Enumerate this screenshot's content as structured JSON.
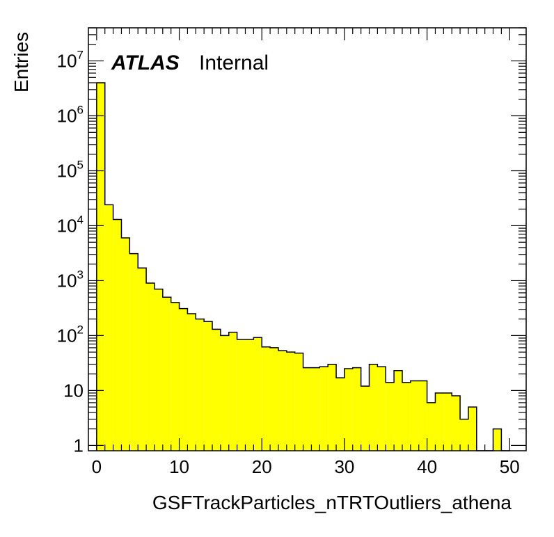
{
  "chart_data": {
    "type": "histogram",
    "xlabel": "GSFTrackParticles_nTRTOutliers_athena",
    "ylabel": "Entries",
    "xlim": [
      -1,
      52
    ],
    "ylim": [
      0.8,
      40000000
    ],
    "y_scale": "log",
    "bin_edges_start": 0,
    "bin_width": 1,
    "values": [
      4000000,
      24000,
      13000,
      6000,
      3100,
      1700,
      900,
      700,
      500,
      400,
      310,
      250,
      200,
      180,
      130,
      100,
      115,
      85,
      85,
      92,
      62,
      60,
      53,
      50,
      48,
      26,
      26,
      27,
      30,
      17,
      25,
      26,
      12,
      30,
      27,
      14,
      23,
      14,
      15,
      15,
      6,
      9,
      9,
      8,
      3,
      5,
      0,
      0,
      2,
      0.5
    ],
    "fill_color": "#ffff00",
    "line_color": "#000000",
    "x_ticks": [
      "0",
      "10",
      "20",
      "30",
      "40",
      "50"
    ],
    "y_ticks": [
      {
        "value": 1,
        "base": "1",
        "exp": ""
      },
      {
        "value": 10,
        "base": "10",
        "exp": ""
      },
      {
        "value": 100,
        "base": "10",
        "exp": "2"
      },
      {
        "value": 1000,
        "base": "10",
        "exp": "3"
      },
      {
        "value": 10000,
        "base": "10",
        "exp": "4"
      },
      {
        "value": 100000,
        "base": "10",
        "exp": "5"
      },
      {
        "value": 1000000,
        "base": "10",
        "exp": "6"
      },
      {
        "value": 10000000,
        "base": "10",
        "exp": "7"
      }
    ],
    "annotation": {
      "atlas": "ATLAS",
      "status": "Internal",
      "placement": "top-left"
    },
    "grid": false
  }
}
